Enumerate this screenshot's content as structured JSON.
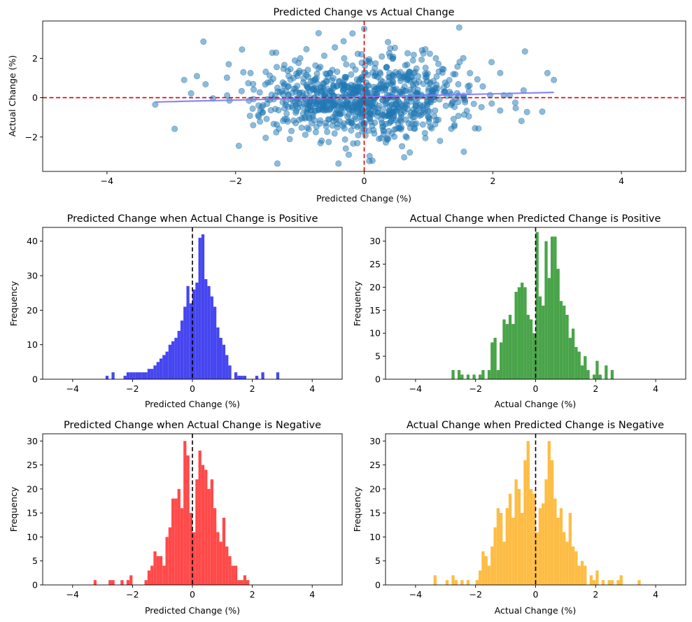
{
  "figure": {
    "background": "#ffffff"
  },
  "chart_data": [
    {
      "type": "scatter",
      "title": "Predicted Change vs Actual Change",
      "xlabel": "Predicted Change (%)",
      "ylabel": "Actual Change (%)",
      "xlim": [
        -5,
        5
      ],
      "ylim": [
        -3.75,
        3.9
      ],
      "xticks": [
        -4,
        -2,
        0,
        2,
        4
      ],
      "yticks": [
        -2,
        0,
        2
      ],
      "point_color": "#1f77b4",
      "point_alpha": 0.5,
      "n_points": 900,
      "seed": 7,
      "x_sd": 0.82,
      "y_sd": 1.02,
      "slope": 0.08,
      "highlight_points": [
        [
          -2.5,
          2.85
        ],
        [
          0.0,
          3.5
        ],
        [
          2.5,
          2.35
        ],
        [
          -1.35,
          -3.35
        ],
        [
          -0.4,
          -3.35
        ],
        [
          1.55,
          -2.75
        ],
        [
          -3.25,
          -0.35
        ],
        [
          2.95,
          0.9
        ],
        [
          -1.95,
          -2.45
        ],
        [
          -2.8,
          0.9
        ],
        [
          2.85,
          1.25
        ],
        [
          -1.9,
          2.45
        ]
      ],
      "trend_line": {
        "x": [
          -3.25,
          2.95
        ],
        "y": [
          -0.22,
          0.27
        ],
        "color": "#7b7bff"
      },
      "ref_lines": {
        "x": 0,
        "y": 0,
        "color": "#dd0000",
        "style": "dashed"
      }
    },
    {
      "type": "histogram",
      "title": "Predicted Change when Actual Change is Positive",
      "xlabel": "Predicted Change (%)",
      "ylabel": "Frequency",
      "xlim": [
        -5,
        5
      ],
      "ylim": [
        0,
        44
      ],
      "xticks": [
        -4,
        -2,
        0,
        2,
        4
      ],
      "yticks": [
        0,
        10,
        20,
        30,
        40
      ],
      "bar_color": "#4646f0",
      "bin_width": 0.1,
      "bins_start": [
        -2.9,
        -2.7,
        -2.3,
        -2.2,
        -2.1,
        -2.0,
        -1.9,
        -1.8,
        -1.7,
        -1.6,
        -1.5,
        -1.4,
        -1.3,
        -1.2,
        -1.1,
        -1.0,
        -0.9,
        -0.8,
        -0.7,
        -0.6,
        -0.5,
        -0.4,
        -0.3,
        -0.2,
        -0.1,
        0.0,
        0.1,
        0.2,
        0.3,
        0.4,
        0.5,
        0.6,
        0.7,
        0.8,
        0.9,
        1.0,
        1.1,
        1.2,
        1.4,
        1.5,
        1.6,
        1.7,
        2.1,
        2.3,
        2.8
      ],
      "counts": [
        1,
        2,
        1,
        2,
        2,
        2,
        2,
        2,
        2,
        2,
        3,
        3,
        4,
        5,
        6,
        7,
        8,
        10,
        11,
        12,
        14,
        17,
        21,
        27,
        22,
        26,
        28,
        41,
        42,
        29,
        27,
        24,
        21,
        15,
        12,
        10,
        7,
        4,
        2,
        1,
        1,
        1,
        1,
        2,
        2
      ],
      "ref_line_x": 0
    },
    {
      "type": "histogram",
      "title": "Actual Change when Predicted Change is Positive",
      "xlabel": "Actual Change (%)",
      "ylabel": "Frequency",
      "xlim": [
        -5,
        5
      ],
      "ylim": [
        0,
        33
      ],
      "xticks": [
        -4,
        -2,
        0,
        2,
        4
      ],
      "yticks": [
        0,
        5,
        10,
        15,
        20,
        25,
        30
      ],
      "bar_color": "#49a449",
      "bin_width": 0.1,
      "bins_start": [
        -2.8,
        -2.6,
        -2.5,
        -2.3,
        -2.1,
        -1.9,
        -1.8,
        -1.6,
        -1.5,
        -1.4,
        -1.3,
        -1.2,
        -1.1,
        -1.0,
        -0.9,
        -0.8,
        -0.7,
        -0.6,
        -0.5,
        -0.4,
        -0.3,
        -0.2,
        -0.1,
        0.0,
        0.1,
        0.2,
        0.3,
        0.4,
        0.5,
        0.6,
        0.7,
        0.8,
        0.9,
        1.0,
        1.1,
        1.2,
        1.3,
        1.4,
        1.5,
        1.6,
        1.7,
        1.9,
        2.0,
        2.1,
        2.3,
        2.5
      ],
      "counts": [
        2,
        2,
        1,
        1,
        1,
        1,
        2,
        2,
        8,
        9,
        2,
        8,
        13,
        12,
        14,
        12,
        19,
        20,
        21,
        20,
        14,
        13,
        10,
        32,
        18,
        16,
        30,
        22,
        31,
        31,
        24,
        17,
        16,
        14,
        9,
        11,
        7,
        6,
        3,
        5,
        2,
        1,
        4,
        1,
        3,
        2
      ],
      "ref_line_x": 0
    },
    {
      "type": "histogram",
      "title": "Predicted Change when Actual Change is Negative",
      "xlabel": "Predicted Change (%)",
      "ylabel": "Frequency",
      "xlim": [
        -5,
        5
      ],
      "ylim": [
        0,
        31.5
      ],
      "xticks": [
        -4,
        -2,
        0,
        2,
        4
      ],
      "yticks": [
        0,
        5,
        10,
        15,
        20,
        25,
        30
      ],
      "bar_color": "#ff4a4a",
      "bin_width": 0.1,
      "bins_start": [
        -3.3,
        -2.8,
        -2.7,
        -2.4,
        -2.2,
        -2.1,
        -1.6,
        -1.5,
        -1.4,
        -1.3,
        -1.2,
        -1.1,
        -1.0,
        -0.9,
        -0.8,
        -0.7,
        -0.6,
        -0.5,
        -0.4,
        -0.3,
        -0.2,
        -0.1,
        0.0,
        0.1,
        0.2,
        0.3,
        0.4,
        0.5,
        0.6,
        0.7,
        0.8,
        0.9,
        1.0,
        1.1,
        1.2,
        1.3,
        1.4,
        1.5,
        1.6,
        1.7,
        1.8
      ],
      "counts": [
        1,
        1,
        1,
        1,
        1,
        2,
        1,
        3,
        4,
        7,
        6,
        6,
        4,
        10,
        12,
        18,
        18,
        20,
        16,
        30,
        27,
        15,
        11,
        22,
        28,
        25,
        24,
        20,
        22,
        16,
        11,
        9,
        14,
        8,
        6,
        4,
        4,
        1,
        1,
        2,
        1
      ],
      "ref_line_x": 0
    },
    {
      "type": "histogram",
      "title": "Actual Change when Predicted Change is Negative",
      "xlabel": "Actual Change (%)",
      "ylabel": "Frequency",
      "xlim": [
        -5,
        5
      ],
      "ylim": [
        0,
        31.5
      ],
      "xticks": [
        -4,
        -2,
        0,
        2,
        4
      ],
      "yticks": [
        0,
        5,
        10,
        15,
        20,
        25,
        30
      ],
      "bar_color": "#fdbd45",
      "bin_width": 0.1,
      "bins_start": [
        -3.4,
        -3.0,
        -2.8,
        -2.7,
        -2.5,
        -2.3,
        -2.0,
        -1.9,
        -1.8,
        -1.7,
        -1.6,
        -1.5,
        -1.4,
        -1.3,
        -1.2,
        -1.1,
        -1.0,
        -0.9,
        -0.8,
        -0.7,
        -0.6,
        -0.5,
        -0.4,
        -0.3,
        -0.2,
        -0.1,
        0.0,
        0.1,
        0.2,
        0.3,
        0.4,
        0.5,
        0.6,
        0.7,
        0.8,
        0.9,
        1.0,
        1.1,
        1.2,
        1.3,
        1.4,
        1.5,
        1.6,
        1.8,
        1.9,
        2.0,
        2.2,
        2.4,
        2.5,
        2.7,
        2.8,
        3.4
      ],
      "counts": [
        2,
        1,
        2,
        1,
        1,
        1,
        1,
        3,
        7,
        6,
        4,
        8,
        12,
        16,
        15,
        9,
        16,
        19,
        14,
        22,
        20,
        15,
        26,
        30,
        20,
        19,
        11,
        16,
        17,
        22,
        30,
        26,
        18,
        14,
        16,
        11,
        9,
        15,
        8,
        7,
        4,
        5,
        4,
        2,
        1,
        3,
        1,
        1,
        1,
        1,
        2,
        1
      ],
      "ref_line_x": 0
    }
  ]
}
